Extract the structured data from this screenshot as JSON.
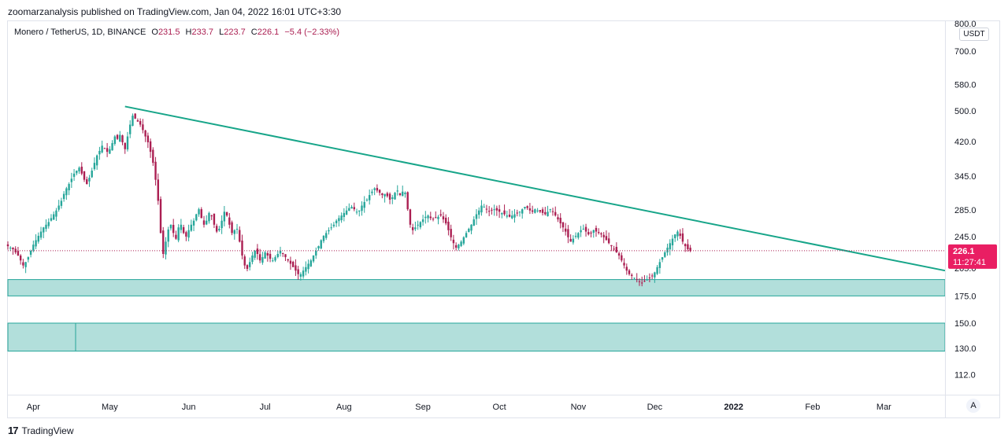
{
  "header": {
    "caption": "zoomarzanalysis published on TradingView.com, Jan 04, 2022 16:01 UTC+3:30"
  },
  "legend": {
    "symbol": "Monero / TetherUS, 1D, BINANCE",
    "open_label": "O",
    "open": "231.5",
    "high_label": "H",
    "high": "233.7",
    "low_label": "L",
    "low": "223.7",
    "close_label": "C",
    "close": "226.1",
    "change": "−5.4 (−2.33%)"
  },
  "price_axis": {
    "currency_badge": "USDT",
    "top_partial_label": "800.0",
    "labels": [
      "700.0",
      "580.0",
      "500.0",
      "420.0",
      "345.0",
      "285.0",
      "245.0",
      "205.0",
      "175.0",
      "150.0",
      "130.0",
      "112.0"
    ],
    "last_price_label": "226.1",
    "countdown_label": "11:27:41"
  },
  "time_axis": {
    "labels": [
      "Apr",
      "May",
      "Jun",
      "Jul",
      "Aug",
      "Sep",
      "Oct",
      "Nov",
      "Dec",
      "2022",
      "Feb",
      "Mar"
    ],
    "auto_button": "A"
  },
  "footer": {
    "brand": "TradingView",
    "logo_glyph": "17"
  },
  "colors": {
    "up": "#26a69a",
    "down": "#ab1f52",
    "trendline": "#17a589",
    "zone_fill": "#b2dfdb",
    "zone_border": "#26a69a",
    "last_price_bg": "#e91e63"
  },
  "chart_data": {
    "type": "candlestick",
    "title": "Monero / TetherUS, 1D, BINANCE",
    "y_scale": "log",
    "ylim": [
      100,
      830
    ],
    "x_range": [
      "2021-03-22",
      "2022-03-25"
    ],
    "last_price": 226.1,
    "last_price_line": "dotted",
    "daily_closes": {
      "start": "2021-03-22",
      "step": "1 day",
      "values": [
        232,
        230,
        228,
        224,
        220,
        214,
        208,
        212,
        218,
        226,
        234,
        240,
        246,
        252,
        258,
        262,
        266,
        272,
        278,
        284,
        292,
        300,
        312,
        322,
        330,
        340,
        350,
        356,
        362,
        350,
        338,
        330,
        342,
        356,
        372,
        388,
        398,
        410,
        404,
        396,
        402,
        416,
        432,
        426,
        436,
        418,
        402,
        432,
        462,
        486,
        478,
        470,
        462,
        448,
        432,
        418,
        396,
        372,
        338,
        300,
        250,
        222,
        238,
        255,
        262,
        250,
        242,
        258,
        262,
        250,
        245,
        254,
        262,
        268,
        278,
        286,
        272,
        262,
        268,
        280,
        276,
        262,
        252,
        256,
        268,
        282,
        276,
        262,
        250,
        254,
        256,
        238,
        220,
        208,
        204,
        212,
        220,
        226,
        222,
        214,
        218,
        224,
        220,
        216,
        214,
        218,
        222,
        226,
        222,
        218,
        214,
        210,
        206,
        202,
        198,
        198,
        202,
        206,
        210,
        214,
        220,
        226,
        232,
        240,
        246,
        250,
        254,
        258,
        262,
        268,
        272,
        276,
        280,
        284,
        288,
        290,
        286,
        282,
        284,
        292,
        298,
        302,
        310,
        316,
        322,
        318,
        314,
        310,
        312,
        308,
        302,
        306,
        314,
        318,
        310,
        316,
        314,
        286,
        262,
        254,
        258,
        262,
        266,
        270,
        274,
        276,
        272,
        270,
        272,
        274,
        276,
        270,
        264,
        254,
        244,
        236,
        230,
        234,
        238,
        244,
        250,
        256,
        262,
        270,
        278,
        284,
        292,
        290,
        286,
        282,
        284,
        286,
        284,
        282,
        280,
        278,
        276,
        274,
        276,
        278,
        280,
        282,
        286,
        290,
        288,
        284,
        282,
        286,
        284,
        282,
        280,
        278,
        282,
        286,
        282,
        276,
        270,
        264,
        258,
        252,
        244,
        238,
        242,
        246,
        250,
        254,
        256,
        252,
        248,
        250,
        254,
        252,
        250,
        248,
        244,
        240,
        236,
        232,
        228,
        224,
        220,
        214,
        208,
        202,
        198,
        196,
        194,
        192,
        190,
        188,
        190,
        192,
        194,
        196,
        200,
        206,
        212,
        218,
        224,
        230,
        236,
        242,
        248,
        252,
        246,
        238,
        232,
        228,
        226
      ]
    },
    "trendline": [
      {
        "date": "2021-05-07",
        "price": 512
      },
      {
        "date": "2022-03-25",
        "price": 202
      }
    ],
    "support_zones": [
      {
        "low": 175,
        "high": 192
      },
      {
        "low": 128,
        "high": 150
      }
    ]
  }
}
